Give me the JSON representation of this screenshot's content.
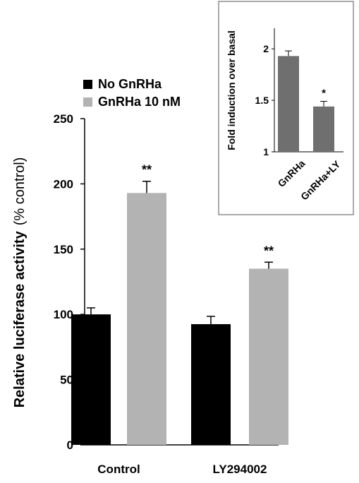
{
  "chart_data": [
    {
      "type": "bar",
      "categories": [
        "Control",
        "LY294002"
      ],
      "series": [
        {
          "name": "No GnRHa",
          "color": "#000000",
          "values": [
            100,
            92.5
          ],
          "errors": [
            5,
            6
          ],
          "labels": [
            "",
            ""
          ]
        },
        {
          "name": "GnRHa 10 nM",
          "color": "#b3b3b3",
          "values": [
            193,
            135
          ],
          "errors": [
            9,
            5
          ],
          "labels": [
            "**",
            "**"
          ]
        }
      ],
      "ylabel_bold": "Relative luciferase activity",
      "ylabel_unit": "(% control)",
      "yticks": [
        0,
        50,
        100,
        150,
        200,
        250
      ],
      "ylim": [
        0,
        250
      ],
      "legend_position": "top-left",
      "grid": false
    },
    {
      "type": "bar",
      "categories": [
        "GnRHa",
        "GnRHa+LY"
      ],
      "series": [
        {
          "name": "",
          "color": "#6f6f6f",
          "values": [
            1.93,
            1.44
          ],
          "errors": [
            0.05,
            0.05
          ],
          "labels": [
            "",
            "*"
          ]
        }
      ],
      "ylabel": "Fold induction over basal",
      "yticks": [
        "1",
        "1.5",
        "2"
      ],
      "ylim": [
        1,
        2.2
      ],
      "grid": false,
      "inset": true
    }
  ]
}
